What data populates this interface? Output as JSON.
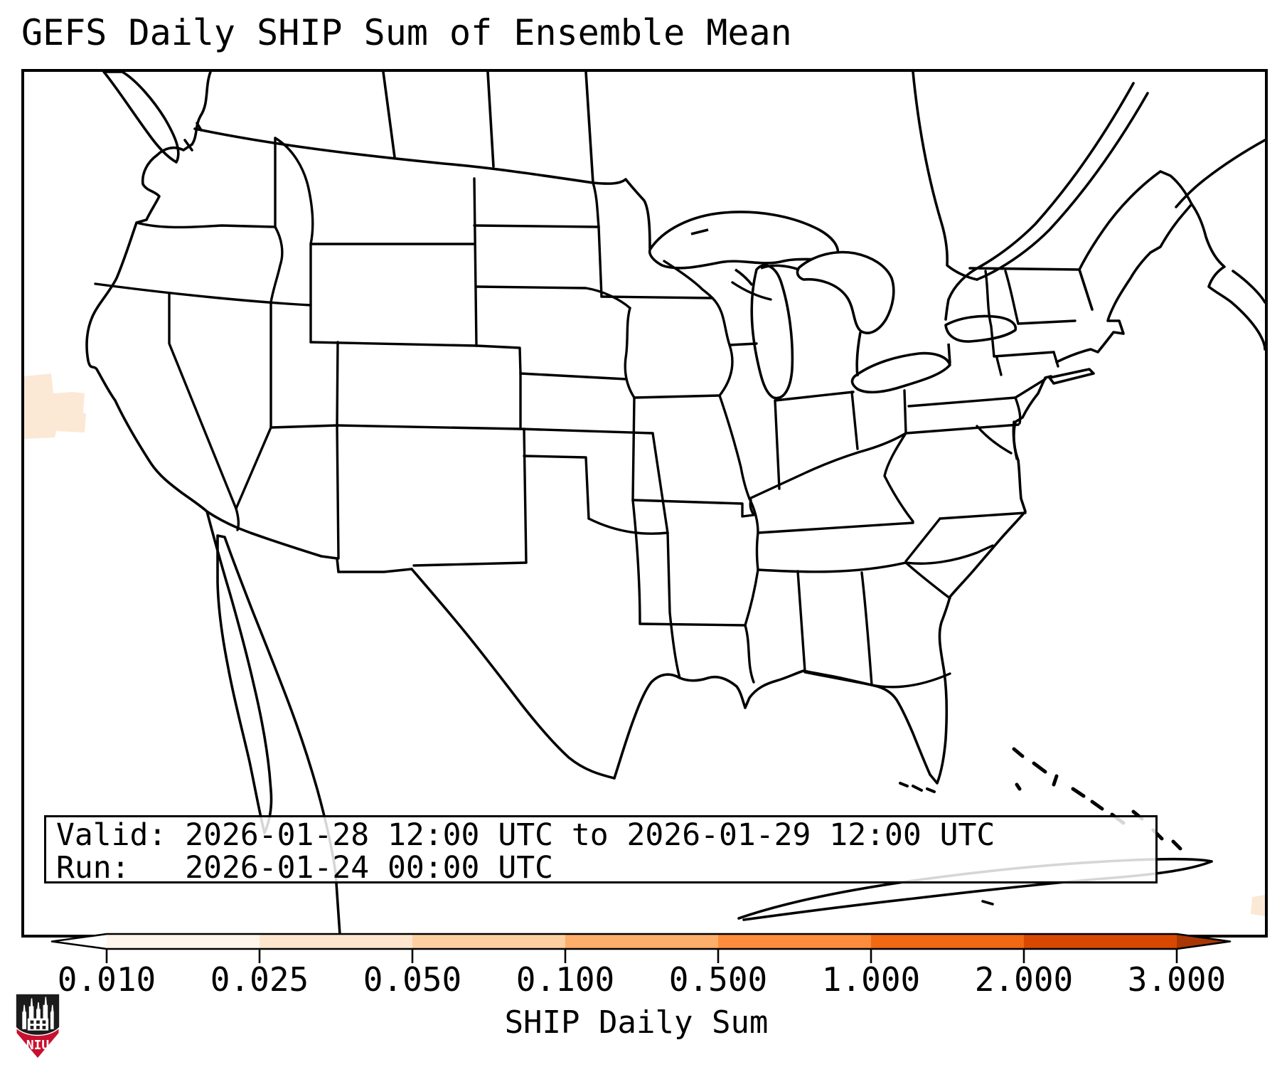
{
  "title": "GEFS Daily SHIP Sum of Ensemble Mean",
  "info_box": {
    "valid_line": "Valid: 2026-01-28 12:00 UTC to 2026-01-29 12:00 UTC",
    "run_line": "Run:   2026-01-24 00:00 UTC"
  },
  "colorbar": {
    "label": "SHIP Daily Sum",
    "ticks": [
      "0.010",
      "0.025",
      "0.050",
      "0.100",
      "0.500",
      "1.000",
      "2.000",
      "3.000"
    ]
  },
  "logo": {
    "text": "NIU",
    "shield_color": "#1b1b1b",
    "band_color": "#c8102e"
  },
  "colors": {
    "map_line": "#000000",
    "frame": "#000000",
    "info_box_bg": "rgba(255,255,255,0.84)"
  },
  "chart_data": {
    "type": "map-contour",
    "title": "GEFS Daily SHIP Sum of Ensemble Mean",
    "projection_region": "Contiguous United States with state borders, southern Canada, northern Mexico, Cuba and the Bahamas",
    "colorbar_label": "SHIP Daily Sum",
    "levels": [
      0.01,
      0.025,
      0.05,
      0.1,
      0.5,
      1.0,
      2.0,
      3.0
    ],
    "tick_labels": [
      "0.010",
      "0.025",
      "0.050",
      "0.100",
      "0.500",
      "1.000",
      "2.000",
      "3.000"
    ],
    "colors": [
      "#fff5eb",
      "#fee6ce",
      "#fdd0a2",
      "#fdae6b",
      "#fd8d3c",
      "#f16913",
      "#d94801"
    ],
    "under_color": "#ffffff",
    "over_color": "#a83703",
    "extend": "both",
    "shade_color": "#fbe9d5",
    "valid": "2026-01-28 12:00 UTC to 2026-01-29 12:00 UTC",
    "run": "2026-01-24 00:00 UTC",
    "regions": [
      {
        "location": "Pacific offshore, west of the northern California coast (left map edge)",
        "value_range": "0.010-0.025"
      },
      {
        "location": "western Atlantic at lower-right map edge",
        "value_range": "0.010-0.025"
      }
    ]
  }
}
